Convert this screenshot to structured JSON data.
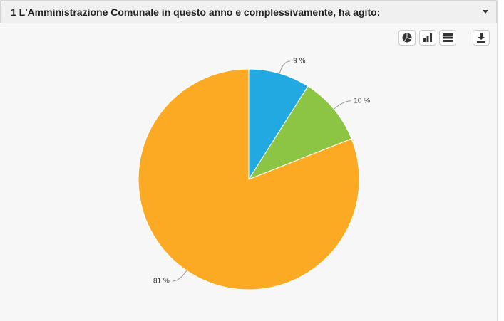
{
  "chart_data": {
    "type": "pie",
    "title": "1 L'Amministrazione Comunale in questo anno e complessivamente, ha agito:",
    "values": [
      9,
      10,
      81
    ],
    "value_labels": [
      "9 %",
      "10 %",
      "81 %"
    ],
    "colors": [
      "#22a9e1",
      "#8cc443",
      "#fca924"
    ]
  }
}
